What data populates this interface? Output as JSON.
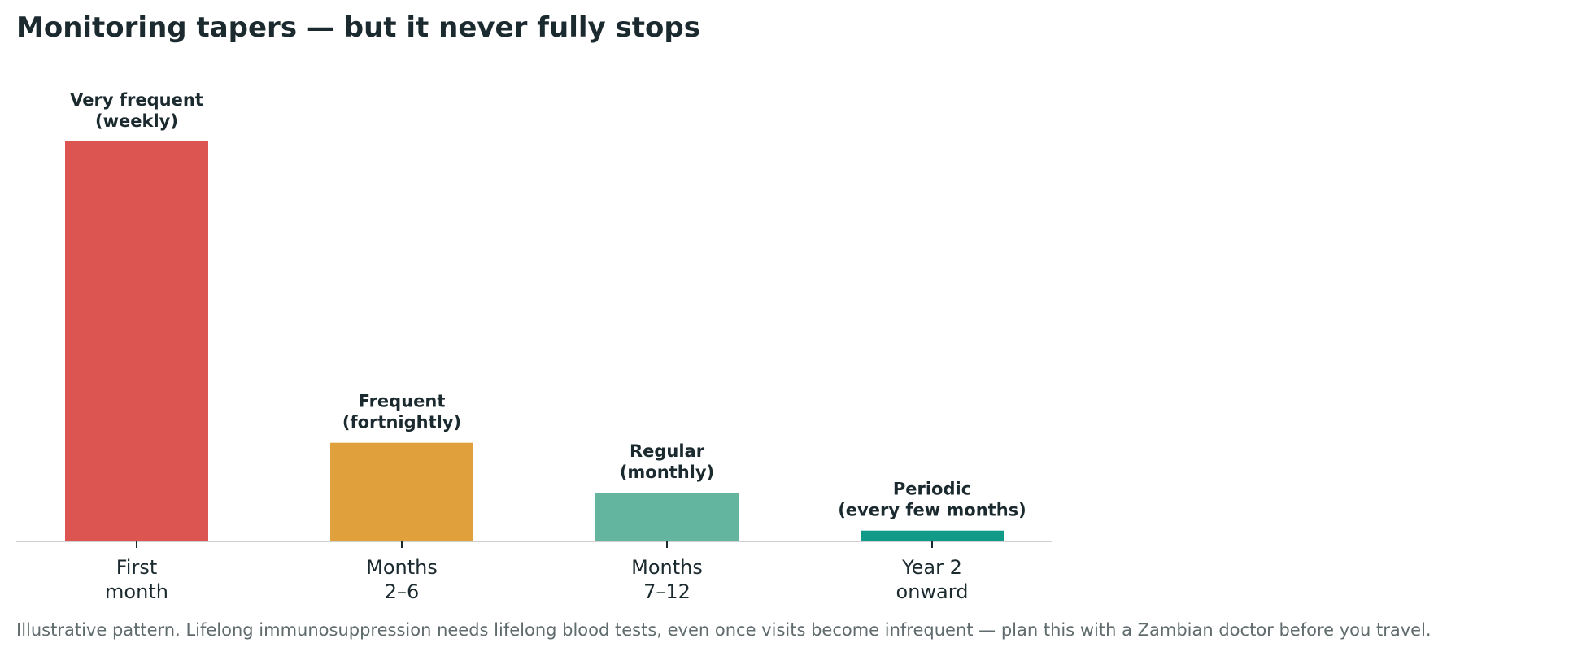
{
  "title": "Monitoring tapers — but it never fully stops",
  "caption": "Illustrative pattern. Lifelong immunosuppression needs lifelong blood tests, even once visits become infrequent — plan this with a Zambian doctor before you travel.",
  "chart_data": {
    "type": "bar",
    "title": "Monitoring tapers — but it never fully stops",
    "xlabel": "",
    "ylabel": "",
    "categories": [
      [
        "First",
        "month"
      ],
      [
        "Months",
        "2–6"
      ],
      [
        "Months",
        "7–12"
      ],
      [
        "Year 2",
        "onward"
      ]
    ],
    "values": [
      100,
      24.5,
      12,
      2.5
    ],
    "ylim": [
      0,
      100
    ],
    "y_axis_shown": false,
    "grid": false,
    "data_labels": [
      [
        "Very frequent",
        "(weekly)"
      ],
      [
        "Frequent",
        "(fortnightly)"
      ],
      [
        "Regular",
        "(monthly)"
      ],
      [
        "Periodic",
        "(every few months)"
      ]
    ],
    "colors": [
      "#dc5550",
      "#e0a03b",
      "#63b59f",
      "#119a87"
    ]
  }
}
